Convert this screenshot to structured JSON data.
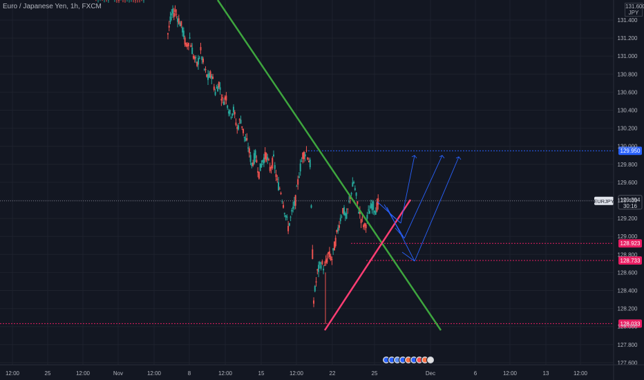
{
  "header": {
    "symbol_title": "Euro / Japanese Yen, 1h, FXCM",
    "currency": "JPY",
    "top_partial_label": "131.600"
  },
  "colors": {
    "background": "#131722",
    "grid": "#1e222d",
    "text": "#b2b5be",
    "up": "#26a69a",
    "down": "#ef5350",
    "trend_down": "#3ea63e",
    "trend_up": "#ff3d73",
    "projection": "#2962ff",
    "price_badge_red": "#e91e63",
    "price_badge_blue": "#2962ff"
  },
  "chart_data": {
    "type": "candlestick",
    "symbol": "EURJPY",
    "title": "Euro / Japanese Yen, 1h, FXCM",
    "ylim": [
      127.55,
      131.66
    ],
    "y_ticks": [
      "131.400",
      "131.200",
      "131.000",
      "130.800",
      "130.600",
      "130.400",
      "130.200",
      "130.000",
      "129.800",
      "129.600",
      "129.400",
      "129.200",
      "129.000",
      "128.800",
      "128.600",
      "128.400",
      "128.200",
      "128.000",
      "127.800",
      "127.600"
    ],
    "x_ticks": [
      "12:00",
      "25",
      "12:00",
      "Nov",
      "12:00",
      "8",
      "12:00",
      "15",
      "12:00",
      "22",
      "25",
      "Dec",
      "6",
      "12:00",
      "13",
      "12:00"
    ],
    "current_price": {
      "symbol": "EURJPY",
      "price": "129.394",
      "countdown": "30:16"
    },
    "levels": [
      {
        "price": "129.950",
        "style": "dotted",
        "color": "#2962ff"
      },
      {
        "price": "128.923",
        "style": "dotted",
        "color": "#e91e63"
      },
      {
        "price": "128.733",
        "style": "dotted",
        "color": "#e91e63"
      },
      {
        "price": "128.033",
        "style": "dotted",
        "color": "#e91e63"
      }
    ],
    "trendlines": [
      {
        "name": "descending",
        "color": "#3ea63e",
        "from": [
          131.66,
          "Nov 5"
        ],
        "to": [
          128.05,
          "Nov 29"
        ]
      },
      {
        "name": "ascending",
        "color": "#ff3d73",
        "from": [
          128.03,
          "Nov 21"
        ],
        "to": [
          129.43,
          "Nov 26"
        ]
      }
    ],
    "price_path": [
      131.25,
      131.45,
      131.5,
      131.4,
      131.3,
      131.1,
      131.2,
      131.0,
      130.9,
      131.05,
      130.85,
      130.75,
      130.8,
      130.6,
      130.7,
      130.5,
      130.55,
      130.35,
      130.4,
      130.2,
      130.3,
      130.1,
      130.0,
      129.8,
      129.9,
      129.7,
      129.85,
      129.9,
      129.75,
      129.85,
      129.6,
      129.5,
      129.3,
      129.1,
      129.25,
      129.4,
      129.7,
      129.9,
      129.95,
      129.8,
      128.3,
      128.6,
      128.7,
      128.65,
      128.8,
      128.75,
      128.95,
      129.15,
      129.3,
      129.2,
      129.45,
      129.6,
      129.35,
      129.2,
      129.1,
      129.25,
      129.35,
      129.3,
      129.4
    ],
    "gap_label": "Nov 28-29 (events)"
  }
}
